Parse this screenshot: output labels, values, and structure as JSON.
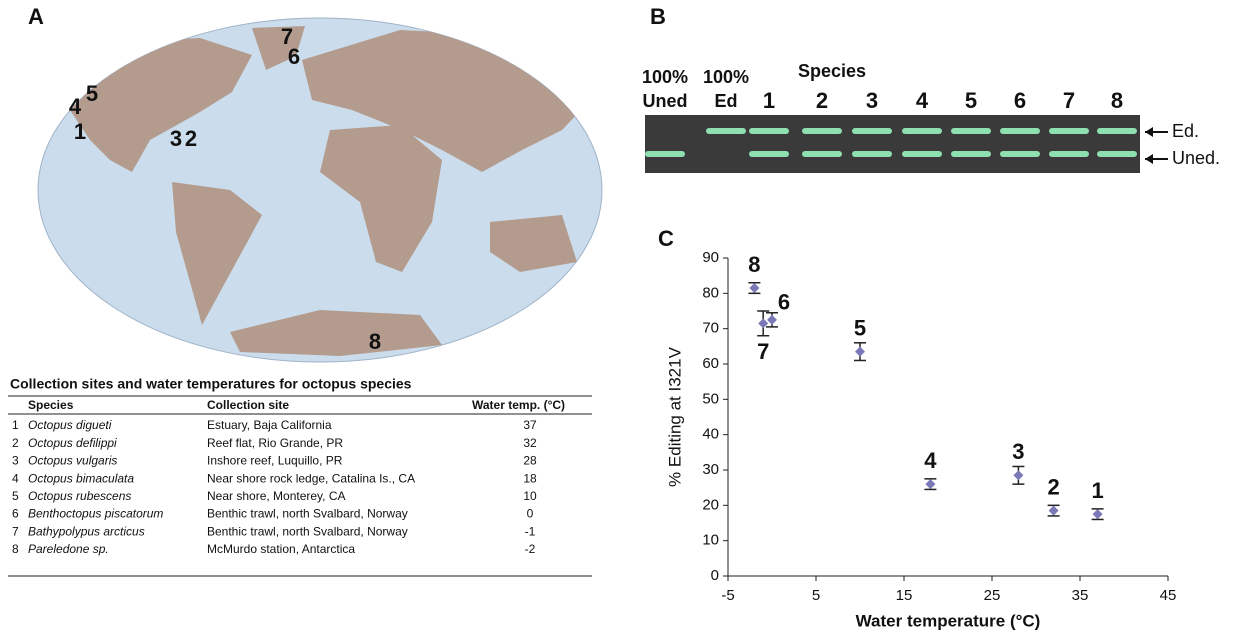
{
  "panel_a": {
    "label": "A",
    "map_labels": [
      "7",
      "6",
      "5",
      "4",
      "1",
      "3",
      "2",
      "8"
    ],
    "table": {
      "title": "Collection sites and water temperatures for octopus species",
      "headers": [
        "Species",
        "Collection site",
        "Water temp. (°C)"
      ],
      "rows": [
        [
          "1",
          "Octopus digueti",
          "Estuary, Baja California",
          "37"
        ],
        [
          "2",
          "Octopus defilippi",
          "Reef flat, Rio Grande, PR",
          "32"
        ],
        [
          "3",
          "Octopus vulgaris",
          "Inshore reef, Luquillo, PR",
          "28"
        ],
        [
          "4",
          "Octopus bimaculata",
          "Near shore rock ledge, Catalina Is., CA",
          "18"
        ],
        [
          "5",
          "Octopus rubescens",
          "Near shore, Monterey, CA",
          "10"
        ],
        [
          "6",
          "Benthoctopus piscatorum",
          "Benthic trawl, north Svalbard, Norway",
          "0"
        ],
        [
          "7",
          "Bathypolypus arcticus",
          "Benthic trawl, north Svalbard, Norway",
          "-1"
        ],
        [
          "8",
          "Pareledone sp.",
          "McMurdo station, Antarctica",
          "-2"
        ]
      ]
    }
  },
  "panel_b": {
    "label": "B",
    "control_lanes": [
      [
        "100%",
        "Uned"
      ],
      [
        "100%",
        "Ed"
      ]
    ],
    "species_title": "Species",
    "species_lanes": [
      "1",
      "2",
      "3",
      "4",
      "5",
      "6",
      "7",
      "8"
    ],
    "band_labels": [
      "Ed.",
      "Uned."
    ]
  },
  "chart_data": {
    "type": "scatter",
    "panel_label": "C",
    "x_label": "Water temperature (°C)",
    "y_label": "% Editing at I321V",
    "x": [
      37,
      32,
      28,
      18,
      10,
      0,
      -1,
      -2
    ],
    "point_labels": [
      "1",
      "2",
      "3",
      "4",
      "5",
      "6",
      "7",
      "8"
    ],
    "series": [
      {
        "color": "#7b78b8",
        "values": [
          17.5,
          18.5,
          28.5,
          26,
          63.5,
          72.5,
          71.5,
          81.5
        ],
        "errors": [
          1.5,
          1.5,
          2.5,
          1.5,
          2.5,
          2,
          3.5,
          1.5
        ]
      }
    ],
    "xlim": [
      -5,
      45
    ],
    "xticks": [
      -5,
      5,
      15,
      25,
      35,
      45
    ],
    "ylim": [
      0,
      90
    ],
    "yticks": [
      0,
      10,
      20,
      30,
      40,
      50,
      60,
      70,
      80,
      90
    ]
  }
}
